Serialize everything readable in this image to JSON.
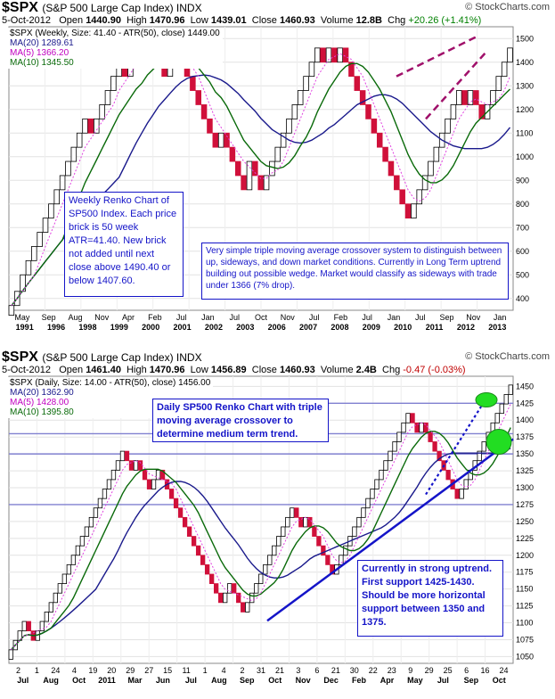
{
  "top": {
    "ticker": "$SPX",
    "subtitle": "(S&P 500 Large Cap Index) INDX",
    "logo": "© StockCharts.com",
    "date": "5-Oct-2012",
    "open_label": "Open",
    "open": "1440.90",
    "high_label": "High",
    "high": "1470.96",
    "low_label": "Low",
    "low": "1439.01",
    "close_label": "Close",
    "close": "1460.93",
    "volume_label": "Volume",
    "volume": "12.8B",
    "chg_label": "Chg",
    "chg": "+20.26 (+1.41%)",
    "legend_price": "$SPX (Weekly, Size: 41.40 - ATR(50), close) 1449.00",
    "legend_ma20": "MA(20) 1289.61",
    "legend_ma5": "MA(5) 1366.20",
    "legend_ma10": "MA(10) 1345.50",
    "note_left": "Weekly Renko Chart of SP500 Index.  Each price brick is 50 week ATR=41.40.  New brick not added until next close above 1490.40 or below 1407.60.",
    "note_right": "Very simple triple moving average crossover system to distinguish between up, sideways, and down market conditions.  Currently in Long Term uptrend building out possible wedge.  Market would classify as sideways with trade under 1366 (7% drop)."
  },
  "bottom": {
    "ticker": "$SPX",
    "subtitle": "(S&P 500 Large Cap Index) INDX",
    "logo": "© StockCharts.com",
    "date": "5-Oct-2012",
    "open_label": "Open",
    "open": "1461.40",
    "high_label": "High",
    "high": "1470.96",
    "low_label": "Low",
    "low": "1456.89",
    "close_label": "Close",
    "close": "1460.93",
    "volume_label": "Volume",
    "volume": "2.4B",
    "chg_label": "Chg",
    "chg": "-0.47 (-0.03%)",
    "legend_price": "$SPX (Daily, Size: 14.00 - ATR(50), close) 1456.00",
    "legend_ma20": "MA(20) 1362.90",
    "legend_ma5": "MA(5) 1428.00",
    "legend_ma10": "MA(10) 1395.80",
    "note_top": "Daily SP500 Renko Chart with triple moving average crossover to determine medium term trend.",
    "note_bottom": "Currently in strong uptrend.  First support 1425-1430.  Should be more horizontal support between 1350 and 1375."
  },
  "colors": {
    "up_brick": "#000000",
    "down_brick": "#d0103a",
    "ma20": "#1a1a8c",
    "ma5": "#e040e0",
    "ma10": "#0a6a0a",
    "trend_line": "#1414c8",
    "wedge_line": "#a0106a",
    "support_marker": "#22dd22"
  },
  "chart_data": [
    {
      "type": "renko",
      "title": "$SPX (S&P 500 Large Cap Index) INDX",
      "brick_size": 41.4,
      "ylim": [
        350,
        1550
      ],
      "y_ticks": [
        400,
        500,
        600,
        700,
        800,
        900,
        1000,
        1100,
        1200,
        1300,
        1400,
        1500
      ],
      "x_tick_labels": [
        "May",
        "Sep",
        "Aug",
        "Nov",
        "Apr",
        "Feb",
        "Jul",
        "Jan",
        "Jul",
        "Oct",
        "Nov",
        "Jul",
        "Feb",
        "Jul",
        "Jan",
        "Jul",
        "Sep",
        "Nov",
        "Jan"
      ],
      "x_year_labels": [
        "1991",
        "1996",
        "1998",
        "1999",
        "2000",
        "2001",
        "2002",
        "2003",
        "2006",
        "2007",
        "2008",
        "2009",
        "2010",
        "2011",
        "2012",
        "2013"
      ],
      "closes": [
        370,
        430,
        500,
        560,
        620,
        680,
        740,
        800,
        860,
        920,
        980,
        1040,
        1100,
        1160,
        1100,
        1160,
        1220,
        1280,
        1340,
        1400,
        1340,
        1400,
        1460,
        1400,
        1460,
        1400,
        1460,
        1340,
        1400,
        1460,
        1400,
        1340,
        1280,
        1220,
        1160,
        1100,
        1040,
        1100,
        1040,
        980,
        920,
        860,
        980,
        920,
        860,
        920,
        980,
        1040,
        1100,
        1160,
        1220,
        1280,
        1340,
        1400,
        1460,
        1400,
        1460,
        1400,
        1460,
        1400,
        1340,
        1280,
        1220,
        1160,
        1100,
        1040,
        980,
        920,
        860,
        800,
        740,
        800,
        860,
        920,
        980,
        1040,
        1100,
        1160,
        1220,
        1280,
        1220,
        1280,
        1220,
        1160,
        1220,
        1280,
        1340,
        1400,
        1460
      ],
      "series": [
        {
          "name": "MA(20)",
          "last": 1289.61
        },
        {
          "name": "MA(5)",
          "last": 1366.2
        },
        {
          "name": "MA(10)",
          "last": 1345.5
        }
      ],
      "last_price": 1449.0
    },
    {
      "type": "renko",
      "title": "$SPX (S&P 500 Large Cap Index) INDX",
      "brick_size": 14.0,
      "ylim": [
        1040,
        1465
      ],
      "y_ticks": [
        1050,
        1075,
        1100,
        1125,
        1150,
        1175,
        1200,
        1225,
        1250,
        1275,
        1300,
        1325,
        1350,
        1375,
        1400,
        1425,
        1450
      ],
      "x_tick_labels": [
        "2",
        "1",
        "24",
        "4",
        "2011",
        "Mar",
        "Jun",
        "Jul",
        "Aug",
        "Sep",
        "Oct",
        "Nov",
        "Dec",
        "Feb",
        "Apr",
        "May",
        "Jul",
        "Sep",
        "Oct"
      ],
      "x_day_labels": [
        "2",
        "1",
        "24",
        "4",
        "19",
        "20",
        "29",
        "27",
        "15",
        "11",
        "1",
        "4",
        "2",
        "31",
        "21",
        "3",
        "6",
        "21",
        "30",
        "22",
        "23",
        "9",
        "29",
        "25",
        "6",
        "16",
        "24"
      ],
      "x_month_labels": [
        "Jul",
        "Aug",
        "Oct",
        "2011",
        "Mar",
        "Jun",
        "Jul",
        "Aug",
        "Sep",
        "Oct",
        "Nov",
        "Dec",
        "Feb",
        "Apr",
        "May",
        "Jul",
        "Sep",
        "Oct"
      ],
      "closes": [
        1060,
        1074,
        1088,
        1102,
        1088,
        1074,
        1088,
        1102,
        1116,
        1130,
        1144,
        1158,
        1172,
        1186,
        1200,
        1214,
        1228,
        1242,
        1256,
        1270,
        1284,
        1298,
        1312,
        1326,
        1340,
        1354,
        1340,
        1326,
        1340,
        1326,
        1312,
        1298,
        1312,
        1326,
        1312,
        1298,
        1284,
        1270,
        1256,
        1242,
        1228,
        1214,
        1200,
        1186,
        1172,
        1158,
        1144,
        1130,
        1144,
        1158,
        1144,
        1130,
        1116,
        1130,
        1144,
        1158,
        1172,
        1186,
        1200,
        1214,
        1228,
        1242,
        1256,
        1270,
        1256,
        1242,
        1256,
        1242,
        1228,
        1214,
        1200,
        1186,
        1172,
        1186,
        1200,
        1214,
        1228,
        1242,
        1256,
        1270,
        1284,
        1298,
        1312,
        1326,
        1340,
        1354,
        1368,
        1382,
        1396,
        1410,
        1396,
        1382,
        1396,
        1382,
        1368,
        1354,
        1340,
        1326,
        1312,
        1298,
        1284,
        1298,
        1312,
        1326,
        1340,
        1354,
        1368,
        1382,
        1396,
        1410,
        1424,
        1438,
        1452
      ],
      "series": [
        {
          "name": "MA(20)",
          "last": 1362.9
        },
        {
          "name": "MA(5)",
          "last": 1428.0
        },
        {
          "name": "MA(10)",
          "last": 1395.8
        }
      ],
      "last_price": 1456.0
    }
  ]
}
